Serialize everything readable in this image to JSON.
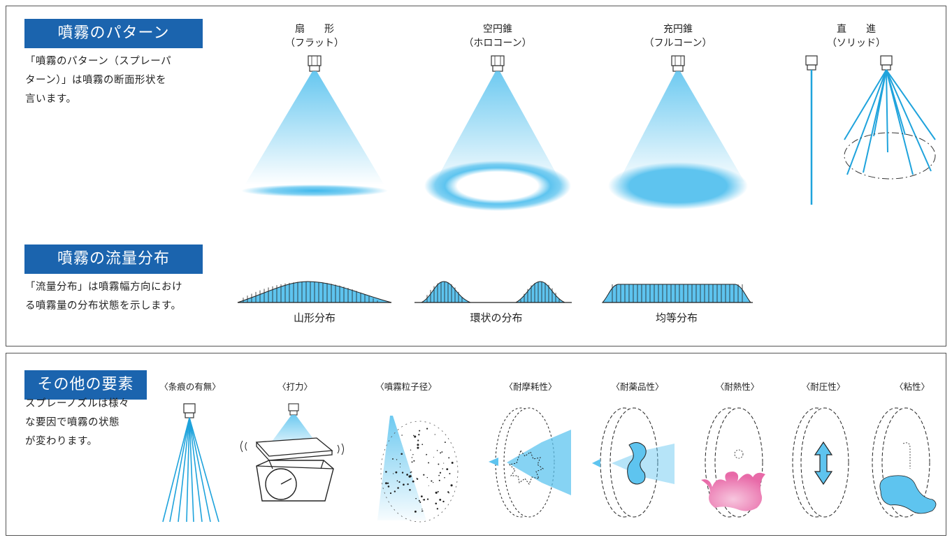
{
  "top_panel": {
    "pattern_section": {
      "heading": "噴霧のパターン",
      "desc_lines": [
        "「噴霧のパターン（スプレーパ",
        "ターン）」は噴霧の断面形状を",
        "言います。"
      ],
      "patterns": [
        {
          "line1": "扇　　形",
          "line2": "（フラット）"
        },
        {
          "line1": "空円錐",
          "line2": "（ホロコーン）"
        },
        {
          "line1": "充円錐",
          "line2": "（フルコーン）"
        },
        {
          "line1": "直　　進",
          "line2": "（ソリッド）"
        }
      ]
    },
    "distribution_section": {
      "heading": "噴霧の流量分布",
      "desc_lines": [
        "「流量分布」は噴霧幅方向におけ",
        "る噴霧量の分布状態を示します。"
      ],
      "distributions": [
        "山形分布",
        "環状の分布",
        "均等分布"
      ]
    }
  },
  "bottom_panel": {
    "heading": "その他の要素",
    "desc_lines": [
      "スプレーノズルは様々",
      "な要因で噴霧の状態",
      "が変わります。"
    ],
    "factors": [
      "〈条痕の有無〉",
      "〈打力〉",
      "〈噴霧粒子径〉",
      "〈耐摩耗性〉",
      "〈耐薬品性〉",
      "〈耐熱性〉",
      "〈耐圧性〉",
      "〈粘性〉"
    ]
  },
  "colors": {
    "heading_bg": "#1b64ae",
    "spray_blue": "#5ec4ef",
    "line_blue": "#1fa3dc",
    "heat_pink": "#e86aa8"
  }
}
